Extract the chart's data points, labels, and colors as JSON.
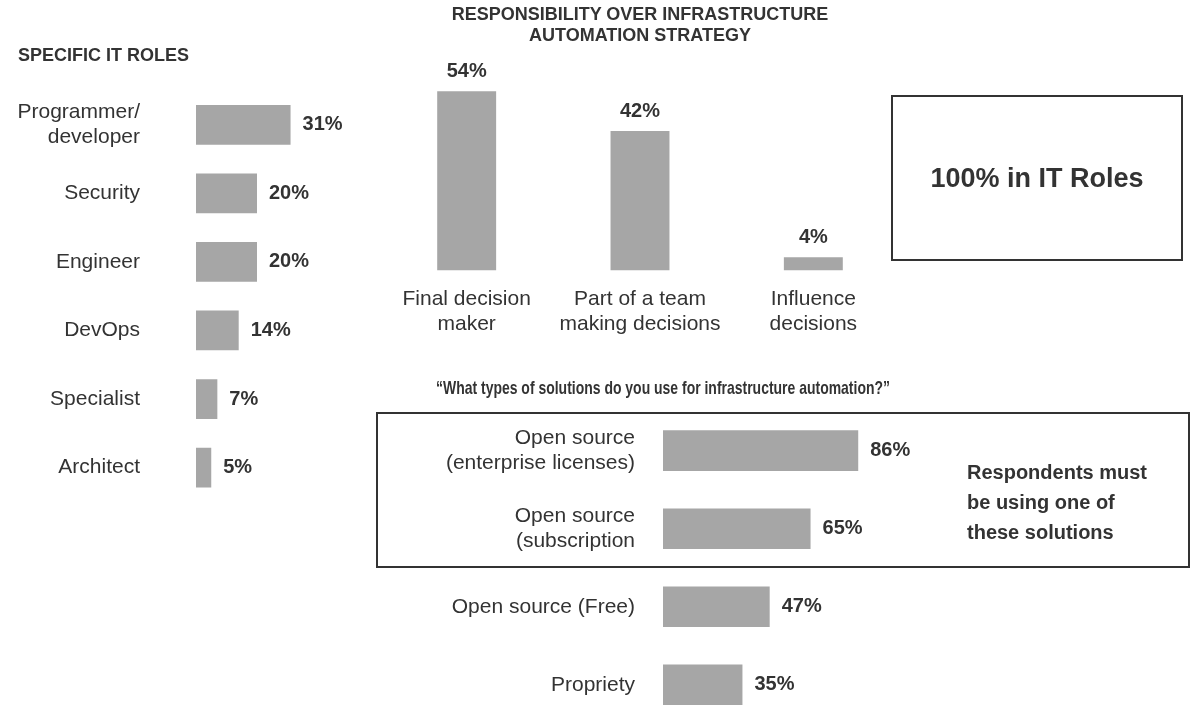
{
  "chart_data": [
    {
      "type": "bar",
      "orientation": "horizontal",
      "title": "SPECIFIC IT ROLES",
      "categories": [
        "Programmer/ developer",
        "Security",
        "Engineer",
        "DevOps",
        "Specialist",
        "Architect"
      ],
      "values": [
        31,
        20,
        20,
        14,
        7,
        5
      ],
      "value_labels": [
        "31%",
        "20%",
        "20%",
        "14%",
        "7%",
        "5%"
      ],
      "color": "#a6a6a6"
    },
    {
      "type": "bar",
      "title": "RESPONSIBILITY OVER INFRASTRUCTURE AUTOMATION STRATEGY",
      "categories": [
        "Final decision maker",
        "Part of a team making decisions",
        "Influence decisions"
      ],
      "values": [
        54,
        42,
        4
      ],
      "value_labels": [
        "54%",
        "42%",
        "4%"
      ],
      "color": "#a6a6a6"
    },
    {
      "type": "other",
      "annotations": [
        "100% in IT Roles"
      ]
    },
    {
      "type": "bar",
      "orientation": "horizontal",
      "title": "“What types of solutions do you use for infrastructure automation?”",
      "categories": [
        "Open source (enterprise licenses)",
        "Open source (subscription",
        "Open source (Free)",
        "Propriety"
      ],
      "values": [
        86,
        65,
        47,
        35
      ],
      "value_labels": [
        "86%",
        "65%",
        "47%",
        "35%"
      ],
      "color": "#a6a6a6",
      "annotations": [
        "Respondents must be using one of these solutions"
      ]
    }
  ]
}
